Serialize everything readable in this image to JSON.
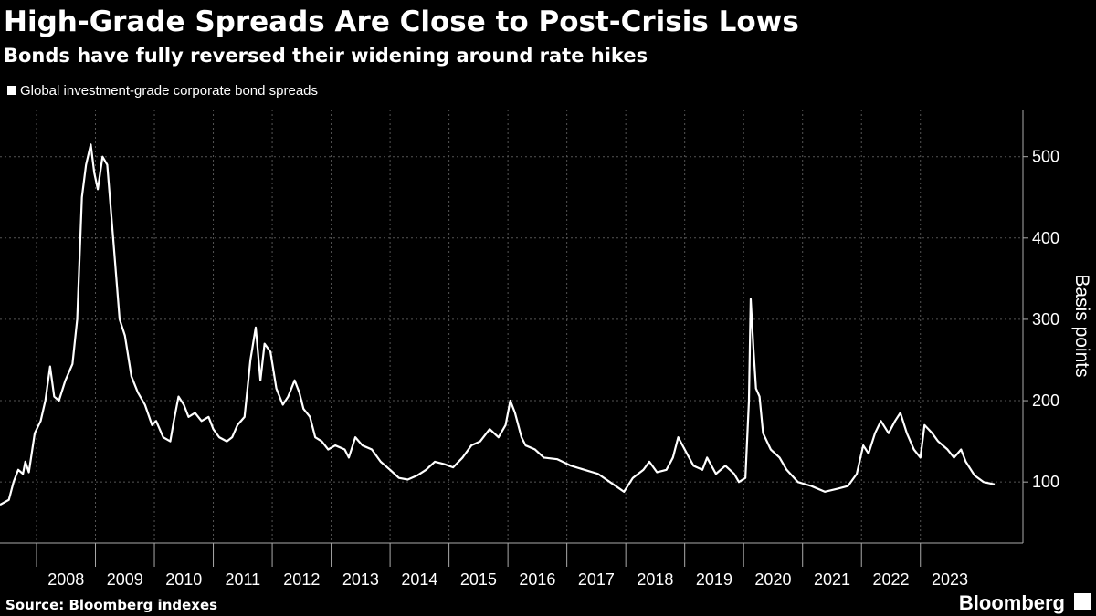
{
  "chart_data": {
    "type": "line",
    "title": "High-Grade Spreads Are Close to Post-Crisis Lows",
    "subtitle": "Bonds have fully reversed their widening around rate hikes",
    "source": "Source: Bloomberg indexes",
    "branding": "Bloomberg",
    "y_label": "Basis points",
    "legend": "top-left",
    "grid": true,
    "x": [
      2007.38,
      2007.53,
      2007.61,
      2007.69,
      2007.77,
      2007.81,
      2007.87,
      2007.97,
      2008.07,
      2008.15,
      2008.23,
      2008.3,
      2008.38,
      2008.49,
      2008.61,
      2008.69,
      2008.77,
      2008.84,
      2008.92,
      2008.98,
      2009.04,
      2009.12,
      2009.2,
      2009.3,
      2009.41,
      2009.5,
      2009.61,
      2009.72,
      2009.84,
      2009.96,
      2010.03,
      2010.15,
      2010.27,
      2010.33,
      2010.41,
      2010.5,
      2010.58,
      2010.69,
      2010.8,
      2010.92,
      2011.0,
      2011.1,
      2011.23,
      2011.32,
      2011.41,
      2011.53,
      2011.63,
      2011.72,
      2011.8,
      2011.87,
      2011.97,
      2012.07,
      2012.18,
      2012.27,
      2012.38,
      2012.46,
      2012.53,
      2012.64,
      2012.73,
      2012.84,
      2012.95,
      2013.07,
      2013.23,
      2013.3,
      2013.41,
      2013.53,
      2013.69,
      2013.84,
      2014.0,
      2014.15,
      2014.3,
      2014.46,
      2014.61,
      2014.76,
      2014.92,
      2015.07,
      2015.23,
      2015.38,
      2015.53,
      2015.69,
      2015.84,
      2015.96,
      2016.04,
      2016.12,
      2016.23,
      2016.3,
      2016.46,
      2016.61,
      2016.84,
      2017.07,
      2017.3,
      2017.53,
      2017.77,
      2017.97,
      2018.12,
      2018.3,
      2018.4,
      2018.53,
      2018.69,
      2018.8,
      2018.89,
      2019.0,
      2019.15,
      2019.3,
      2019.38,
      2019.53,
      2019.69,
      2019.84,
      2019.92,
      2020.03,
      2020.09,
      2020.12,
      2020.17,
      2020.21,
      2020.27,
      2020.33,
      2020.46,
      2020.61,
      2020.73,
      2020.92,
      2021.15,
      2021.38,
      2021.61,
      2021.77,
      2021.92,
      2022.03,
      2022.12,
      2022.23,
      2022.33,
      2022.46,
      2022.57,
      2022.66,
      2022.77,
      2022.89,
      2023.0,
      2023.07,
      2023.2,
      2023.3,
      2023.46,
      2023.57,
      2023.69,
      2023.77,
      2023.92,
      2024.07,
      2024.26
    ],
    "series": [
      {
        "name": "Global investment-grade corporate bond spreads",
        "color": "#ffffff",
        "values": [
          72,
          78,
          100,
          115,
          110,
          125,
          112,
          160,
          175,
          200,
          242,
          205,
          200,
          225,
          245,
          300,
          450,
          490,
          515,
          480,
          460,
          500,
          490,
          400,
          300,
          280,
          230,
          210,
          195,
          170,
          175,
          155,
          150,
          175,
          205,
          195,
          180,
          185,
          175,
          180,
          165,
          155,
          150,
          155,
          170,
          180,
          250,
          290,
          225,
          270,
          260,
          215,
          195,
          205,
          225,
          210,
          190,
          180,
          155,
          150,
          140,
          145,
          140,
          130,
          155,
          145,
          140,
          125,
          115,
          105,
          103,
          108,
          115,
          125,
          122,
          118,
          130,
          145,
          150,
          165,
          155,
          170,
          200,
          185,
          155,
          145,
          140,
          130,
          128,
          120,
          115,
          110,
          98,
          88,
          105,
          115,
          125,
          112,
          115,
          130,
          155,
          140,
          120,
          115,
          130,
          110,
          120,
          110,
          100,
          105,
          200,
          325,
          260,
          215,
          205,
          160,
          140,
          130,
          115,
          100,
          95,
          88,
          92,
          95,
          110,
          145,
          135,
          160,
          175,
          160,
          175,
          185,
          160,
          140,
          130,
          170,
          160,
          150,
          140,
          130,
          140,
          125,
          108,
          100,
          97
        ]
      }
    ],
    "xlim": [
      2007.38,
      2024.74
    ],
    "xticks": [
      2008,
      2009,
      2010,
      2011,
      2012,
      2013,
      2014,
      2015,
      2016,
      2017,
      2018,
      2019,
      2020,
      2021,
      2022,
      2023
    ],
    "ylim": [
      25,
      558
    ],
    "yticks": [
      100,
      200,
      300,
      400,
      500
    ]
  }
}
